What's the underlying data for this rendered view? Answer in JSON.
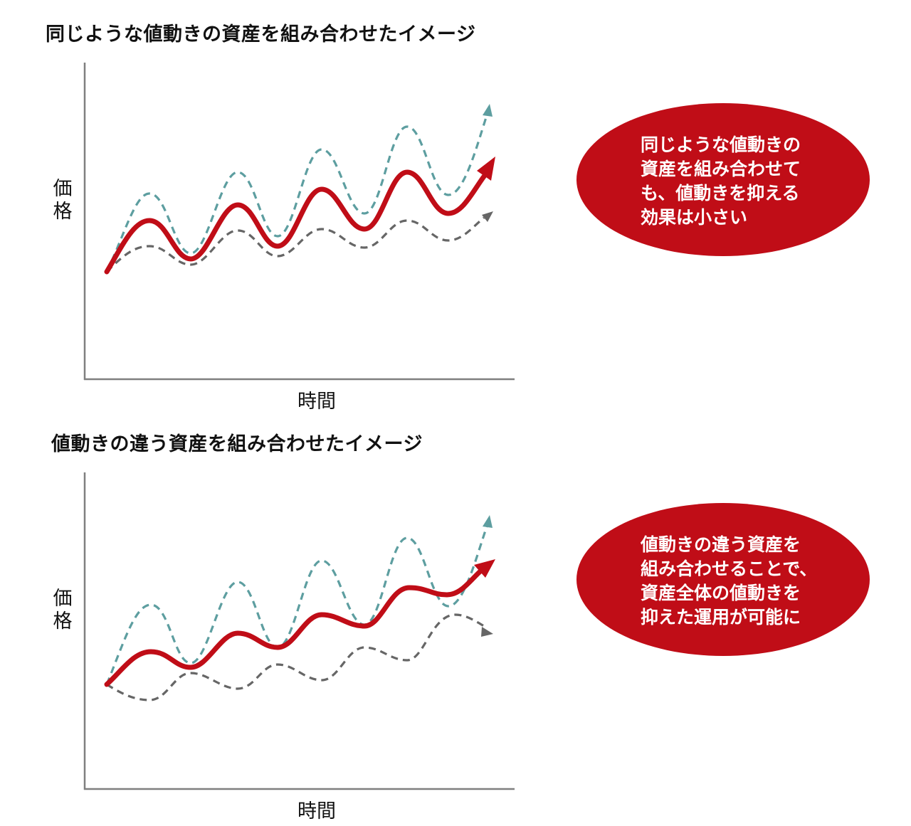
{
  "colors": {
    "accent": "#c00d17",
    "teal": "#5d9ea0",
    "gray": "#666666"
  },
  "panels": [
    {
      "title": "同じような値動きの資産を組み合わせたイメージ",
      "y_label": "価\n格",
      "x_label": "時間",
      "bubble": "同じような値動きの\n資産を組み合わせて\nも、値動きを抑える\n効果は小さい"
    },
    {
      "title": "値動きの違う資産を組み合わせたイメージ",
      "y_label": "価\n格",
      "x_label": "時間",
      "bubble": "値動きの違う資産を\n組み合わせることで、\n資産全体の値動きを\n抑えた運用が可能に"
    }
  ]
}
